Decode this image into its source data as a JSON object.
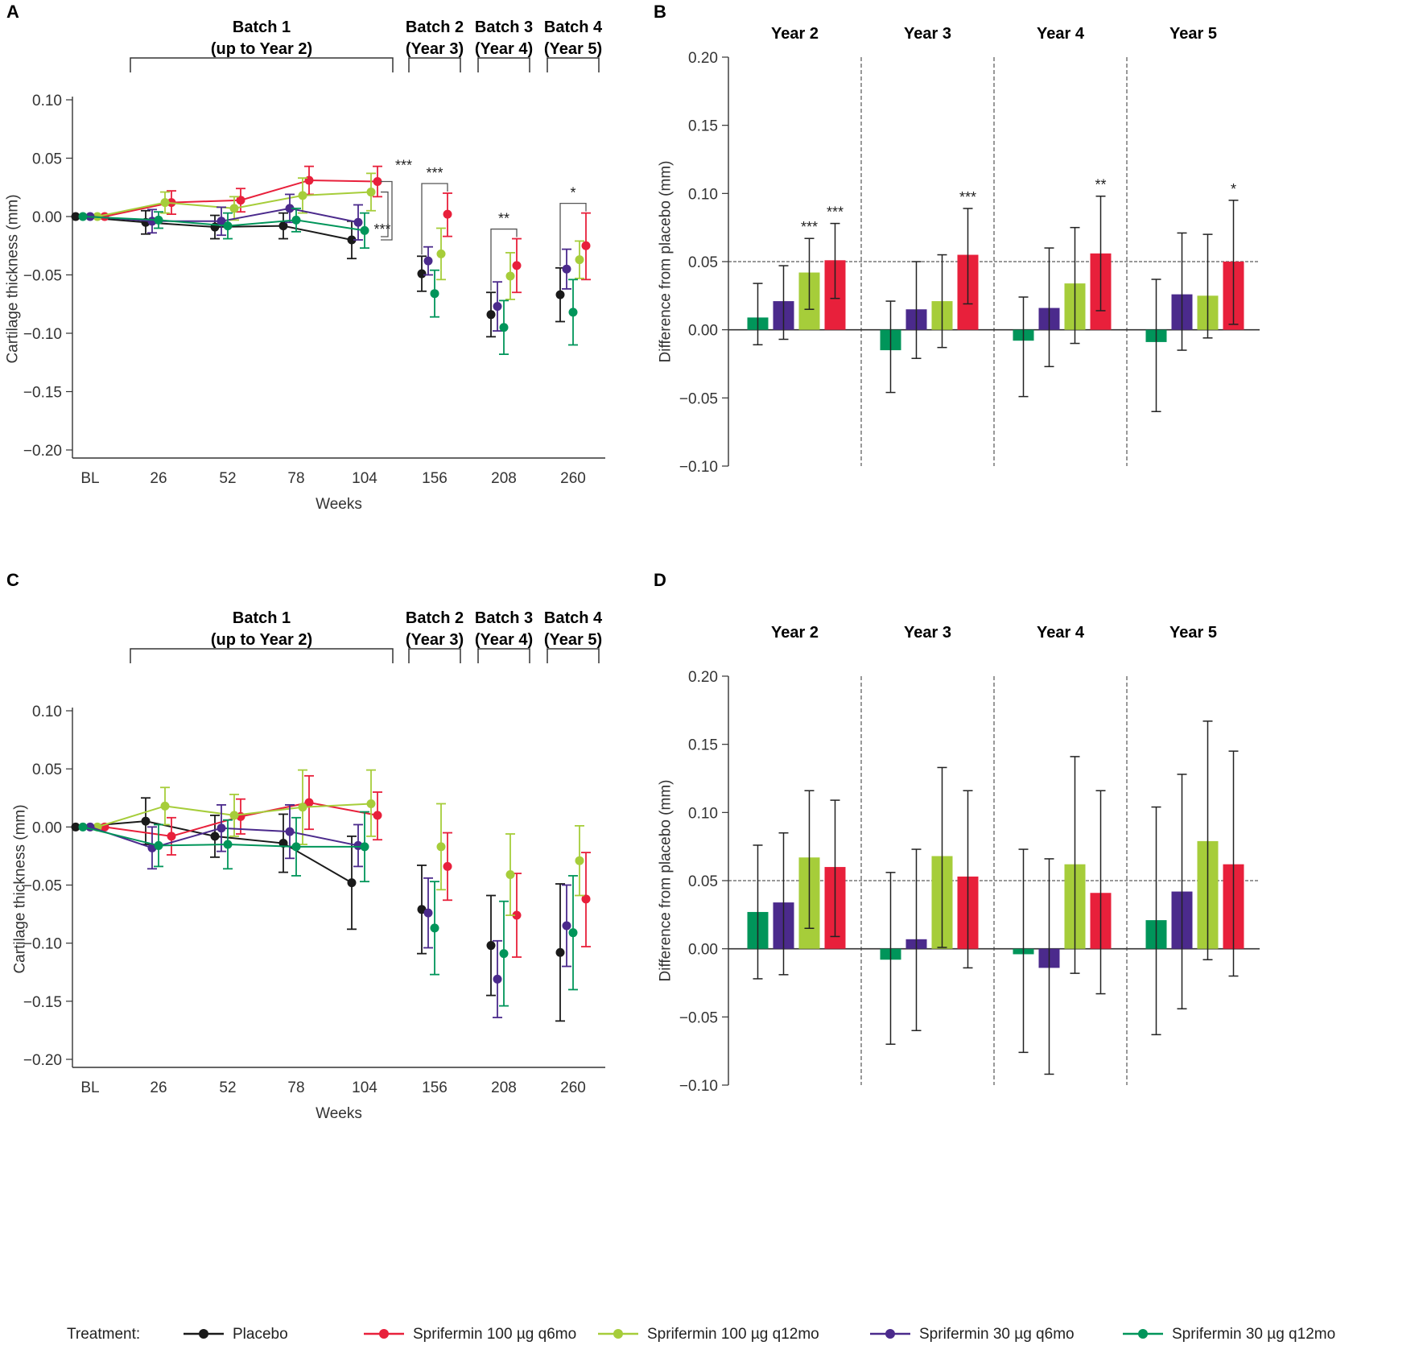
{
  "legend": {
    "title": "Treatment:",
    "items": [
      {
        "name": "Placebo",
        "color": "#1a1a1a"
      },
      {
        "name": "Sprifermin 100 µg q6mo",
        "color": "#e8203b"
      },
      {
        "name": "Sprifermin 100 µg q12mo",
        "color": "#a6cd3a"
      },
      {
        "name": "Sprifermin 30 µg q6mo",
        "color": "#4b2a8c"
      },
      {
        "name": "Sprifermin 30 µg q12mo",
        "color": "#00955a"
      }
    ]
  },
  "chart_data": [
    {
      "panel": "A",
      "type": "line",
      "xlabel": "Weeks",
      "ylabel": "Cartilage thickness (mm)",
      "ylim": [
        -0.2,
        0.1
      ],
      "yticks": [
        "0.10",
        "0.05",
        "0.00",
        "−0.05",
        "−0.10",
        "−0.15",
        "−0.20"
      ],
      "ytick_values": [
        0.1,
        0.05,
        0,
        -0.05,
        -0.1,
        -0.15,
        -0.2
      ],
      "categories": [
        "BL",
        "26",
        "52",
        "78",
        "104",
        "156",
        "208",
        "260"
      ],
      "batches": [
        {
          "line1": "Batch 1",
          "line2": "(up to Year 2)",
          "from": "26",
          "to": "104"
        },
        {
          "line1": "Batch 2",
          "line2": "(Year 3)",
          "from": "156",
          "to": "156"
        },
        {
          "line1": "Batch 3",
          "line2": "(Year 4)",
          "from": "208",
          "to": "208"
        },
        {
          "line1": "Batch 4",
          "line2": "(Year 5)",
          "from": "260",
          "to": "260"
        }
      ],
      "series": [
        {
          "name": "Placebo",
          "values": [
            0.0,
            -0.005,
            -0.009,
            -0.008,
            -0.02,
            -0.049,
            -0.084,
            -0.067
          ],
          "lower": [
            0.0,
            -0.015,
            -0.019,
            -0.019,
            -0.036,
            -0.064,
            -0.103,
            -0.09
          ],
          "upper": [
            0.0,
            0.005,
            0.001,
            0.003,
            -0.004,
            -0.034,
            -0.065,
            -0.044
          ]
        },
        {
          "name": "Sprifermin 100 µg q6mo",
          "values": [
            0.0,
            0.012,
            0.014,
            0.031,
            0.03,
            0.002,
            -0.042,
            -0.025
          ],
          "lower": [
            0.0,
            0.002,
            0.004,
            0.019,
            0.017,
            -0.017,
            -0.065,
            -0.054
          ],
          "upper": [
            0.0,
            0.022,
            0.024,
            0.043,
            0.043,
            0.02,
            -0.019,
            0.003
          ]
        },
        {
          "name": "Sprifermin 100 µg q12mo",
          "values": [
            0.0,
            0.012,
            0.007,
            0.018,
            0.021,
            -0.032,
            -0.051,
            -0.037
          ],
          "lower": [
            0.0,
            0.003,
            -0.003,
            0.003,
            0.005,
            -0.054,
            -0.071,
            -0.053
          ],
          "upper": [
            0.0,
            0.021,
            0.017,
            0.033,
            0.037,
            -0.01,
            -0.031,
            -0.021
          ]
        },
        {
          "name": "Sprifermin 30 µg q6mo",
          "values": [
            0.0,
            -0.004,
            -0.004,
            0.007,
            -0.005,
            -0.038,
            -0.077,
            -0.045
          ],
          "lower": [
            0.0,
            -0.014,
            -0.016,
            -0.005,
            -0.02,
            -0.05,
            -0.098,
            -0.062
          ],
          "upper": [
            0.0,
            0.006,
            0.008,
            0.019,
            0.01,
            -0.026,
            -0.056,
            -0.028
          ]
        },
        {
          "name": "Sprifermin 30 µg q12mo",
          "values": [
            0.0,
            -0.003,
            -0.008,
            -0.003,
            -0.012,
            -0.066,
            -0.095,
            -0.082
          ],
          "lower": [
            0.0,
            -0.01,
            -0.019,
            -0.013,
            -0.027,
            -0.086,
            -0.118,
            -0.11
          ],
          "upper": [
            0.0,
            0.004,
            0.003,
            0.007,
            0.003,
            -0.046,
            -0.072,
            -0.054
          ]
        }
      ],
      "annotations": [
        "***",
        "***",
        "***",
        "**",
        "*"
      ]
    },
    {
      "panel": "B",
      "type": "bar",
      "ylabel": "Difference from placebo (mm)",
      "ylim": [
        -0.1,
        0.2
      ],
      "yticks": [
        "0.20",
        "0.15",
        "0.10",
        "0.05",
        "0.00",
        "−0.05",
        "−0.10"
      ],
      "ytick_values": [
        0.2,
        0.15,
        0.1,
        0.05,
        0,
        -0.05,
        -0.1
      ],
      "reference_line": 0.05,
      "categories": [
        "Year 2",
        "Year 3",
        "Year 4",
        "Year 5"
      ],
      "series": [
        {
          "name": "Sprifermin 30 µg q12mo",
          "values": [
            0.009,
            -0.015,
            -0.008,
            -0.009
          ],
          "lower": [
            -0.011,
            -0.046,
            -0.049,
            -0.06
          ],
          "upper": [
            0.034,
            0.021,
            0.024,
            0.037
          ],
          "sig": [
            "",
            "",
            "",
            ""
          ]
        },
        {
          "name": "Sprifermin 30 µg q6mo",
          "values": [
            0.021,
            0.015,
            0.016,
            0.026
          ],
          "lower": [
            -0.007,
            -0.021,
            -0.027,
            -0.015
          ],
          "upper": [
            0.047,
            0.05,
            0.06,
            0.071
          ],
          "sig": [
            "",
            "",
            "",
            ""
          ]
        },
        {
          "name": "Sprifermin 100 µg q12mo",
          "values": [
            0.042,
            0.021,
            0.034,
            0.025
          ],
          "lower": [
            0.015,
            -0.013,
            -0.01,
            -0.006
          ],
          "upper": [
            0.067,
            0.055,
            0.075,
            0.07
          ],
          "sig": [
            "***",
            "",
            "",
            ""
          ]
        },
        {
          "name": "Sprifermin 100 µg q6mo",
          "values": [
            0.051,
            0.055,
            0.056,
            0.05
          ],
          "lower": [
            0.023,
            0.019,
            0.014,
            0.004
          ],
          "upper": [
            0.078,
            0.089,
            0.098,
            0.095
          ],
          "sig": [
            "***",
            "***",
            "**",
            "*"
          ]
        }
      ]
    },
    {
      "panel": "C",
      "type": "line",
      "xlabel": "Weeks",
      "ylabel": "Cartilage thickness (mm)",
      "ylim": [
        -0.2,
        0.1
      ],
      "yticks": [
        "0.10",
        "0.05",
        "0.00",
        "−0.05",
        "−0.10",
        "−0.15",
        "−0.20"
      ],
      "ytick_values": [
        0.1,
        0.05,
        0,
        -0.05,
        -0.1,
        -0.15,
        -0.2
      ],
      "categories": [
        "BL",
        "26",
        "52",
        "78",
        "104",
        "156",
        "208",
        "260"
      ],
      "batches": [
        {
          "line1": "Batch 1",
          "line2": "(up to Year 2)",
          "from": "26",
          "to": "104"
        },
        {
          "line1": "Batch 2",
          "line2": "(Year 3)",
          "from": "156",
          "to": "156"
        },
        {
          "line1": "Batch 3",
          "line2": "(Year 4)",
          "from": "208",
          "to": "208"
        },
        {
          "line1": "Batch 4",
          "line2": "(Year 5)",
          "from": "260",
          "to": "260"
        }
      ],
      "series": [
        {
          "name": "Placebo",
          "values": [
            0.0,
            0.005,
            -0.008,
            -0.014,
            -0.048,
            -0.071,
            -0.102,
            -0.108
          ],
          "lower": [
            0.0,
            -0.015,
            -0.026,
            -0.039,
            -0.088,
            -0.109,
            -0.145,
            -0.167
          ],
          "upper": [
            0.0,
            0.025,
            0.01,
            0.011,
            -0.008,
            -0.033,
            -0.059,
            -0.049
          ]
        },
        {
          "name": "Sprifermin 100 µg q6mo",
          "values": [
            0.0,
            -0.008,
            0.009,
            0.021,
            0.01,
            -0.034,
            -0.076,
            -0.062
          ],
          "lower": [
            0.0,
            -0.024,
            -0.006,
            -0.002,
            -0.011,
            -0.063,
            -0.112,
            -0.103
          ],
          "upper": [
            0.0,
            0.008,
            0.024,
            0.044,
            0.03,
            -0.005,
            -0.04,
            -0.022
          ]
        },
        {
          "name": "Sprifermin 100 µg q12mo",
          "values": [
            0.0,
            0.018,
            0.01,
            0.017,
            0.02,
            -0.017,
            -0.041,
            -0.029
          ],
          "lower": [
            0.0,
            0.002,
            -0.008,
            -0.015,
            -0.008,
            -0.054,
            -0.076,
            -0.059
          ],
          "upper": [
            0.0,
            0.034,
            0.028,
            0.049,
            0.049,
            0.02,
            -0.006,
            0.001
          ]
        },
        {
          "name": "Sprifermin 30 µg q6mo",
          "values": [
            0.0,
            -0.018,
            -0.001,
            -0.004,
            -0.016,
            -0.074,
            -0.131,
            -0.085
          ],
          "lower": [
            0.0,
            -0.036,
            -0.021,
            -0.027,
            -0.034,
            -0.104,
            -0.164,
            -0.12
          ],
          "upper": [
            0.0,
            0.0,
            0.019,
            0.019,
            0.002,
            -0.044,
            -0.098,
            -0.05
          ]
        },
        {
          "name": "Sprifermin 30 µg q12mo",
          "values": [
            0.0,
            -0.016,
            -0.015,
            -0.017,
            -0.017,
            -0.087,
            -0.109,
            -0.091
          ],
          "lower": [
            0.0,
            -0.034,
            -0.036,
            -0.042,
            -0.047,
            -0.127,
            -0.154,
            -0.14
          ],
          "upper": [
            0.0,
            0.002,
            0.006,
            0.008,
            0.013,
            -0.047,
            -0.064,
            -0.042
          ]
        }
      ]
    },
    {
      "panel": "D",
      "type": "bar",
      "ylabel": "Difference from placebo (mm)",
      "ylim": [
        -0.1,
        0.2
      ],
      "yticks": [
        "0.20",
        "0.15",
        "0.10",
        "0.05",
        "0.00",
        "−0.05",
        "−0.10"
      ],
      "ytick_values": [
        0.2,
        0.15,
        0.1,
        0.05,
        0,
        -0.05,
        -0.1
      ],
      "reference_line": 0.05,
      "categories": [
        "Year 2",
        "Year 3",
        "Year 4",
        "Year 5"
      ],
      "series": [
        {
          "name": "Sprifermin 30 µg q12mo",
          "values": [
            0.027,
            -0.008,
            -0.004,
            0.021
          ],
          "lower": [
            -0.022,
            -0.07,
            -0.076,
            -0.063
          ],
          "upper": [
            0.076,
            0.056,
            0.073,
            0.104
          ]
        },
        {
          "name": "Sprifermin 30 µg q6mo",
          "values": [
            0.034,
            0.007,
            -0.014,
            0.042
          ],
          "lower": [
            -0.019,
            -0.06,
            -0.092,
            -0.044
          ],
          "upper": [
            0.085,
            0.073,
            0.066,
            0.128
          ]
        },
        {
          "name": "Sprifermin 100 µg q12mo",
          "values": [
            0.067,
            0.068,
            0.062,
            0.079
          ],
          "lower": [
            0.015,
            0.001,
            -0.018,
            -0.008
          ],
          "upper": [
            0.116,
            0.133,
            0.141,
            0.167
          ]
        },
        {
          "name": "Sprifermin 100 µg q6mo",
          "values": [
            0.06,
            0.053,
            0.041,
            0.062
          ],
          "lower": [
            0.009,
            -0.014,
            -0.033,
            -0.02
          ],
          "upper": [
            0.109,
            0.116,
            0.116,
            0.145
          ]
        }
      ]
    }
  ]
}
